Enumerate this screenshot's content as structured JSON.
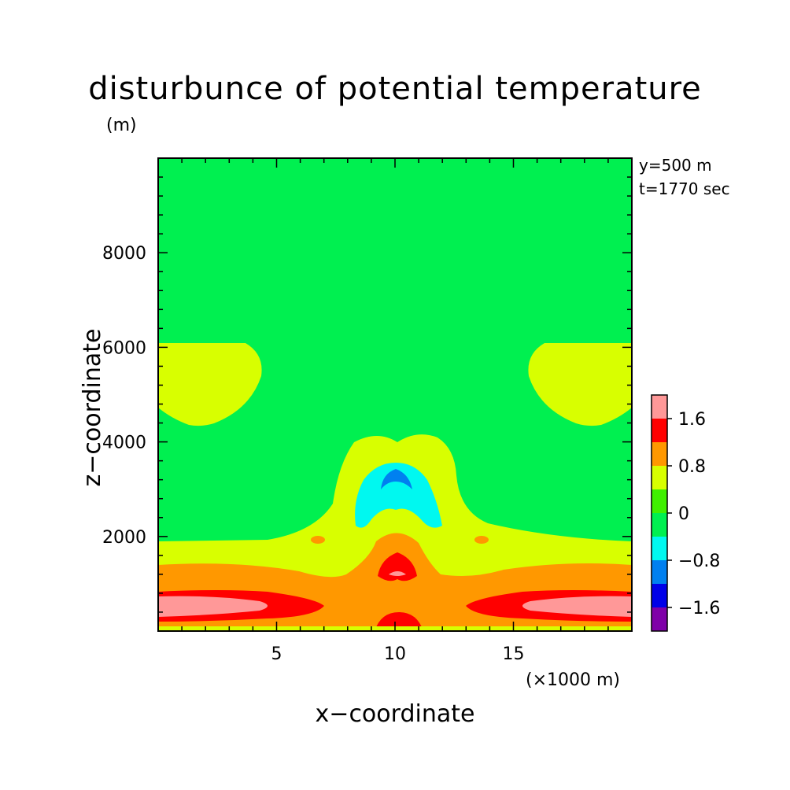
{
  "chart_data": {
    "type": "heatmap",
    "title": "disturbunce of potential temperature",
    "y_unit": "(m)",
    "xlabel": "x−coordinate",
    "ylabel": "z−coordinate",
    "x_unit": "(×1000 m)",
    "info": [
      "y=500 m",
      "t=1770 sec"
    ],
    "xlim": [
      0,
      20
    ],
    "ylim": [
      0,
      10000
    ],
    "x_ticks": [
      "5",
      "10",
      "15"
    ],
    "y_ticks": [
      "2000",
      "4000",
      "6000",
      "8000"
    ],
    "colorbar": {
      "levels": [
        -2.0,
        -1.6,
        -1.2,
        -0.8,
        -0.4,
        0,
        0.4,
        0.8,
        1.2,
        1.6,
        2.0
      ],
      "labels": [
        "−1.6",
        "−0.8",
        "0",
        "0.8",
        "1.6"
      ],
      "colors": [
        "#7f00a8",
        "#0000e8",
        "#0080f0",
        "#00f8f0",
        "#00f050",
        "#40f000",
        "#d8ff00",
        "#ff9800",
        "#ff0000",
        "#ff9898"
      ]
    },
    "regions": [
      {
        "name": "background-band",
        "level": 0
      },
      {
        "name": "upper-left-warm-lobe",
        "level": 0.4
      },
      {
        "name": "upper-right-warm-lobe",
        "level": 0.4
      },
      {
        "name": "central-plume",
        "level": 0.4
      },
      {
        "name": "cold-core-outer",
        "level": -0.8
      },
      {
        "name": "cold-core-inner",
        "level": -1.2
      },
      {
        "name": "low-level-band",
        "level": 0.8
      },
      {
        "name": "warm-layer",
        "level": 1.2
      },
      {
        "name": "max-layer",
        "level": 1.6
      }
    ]
  }
}
